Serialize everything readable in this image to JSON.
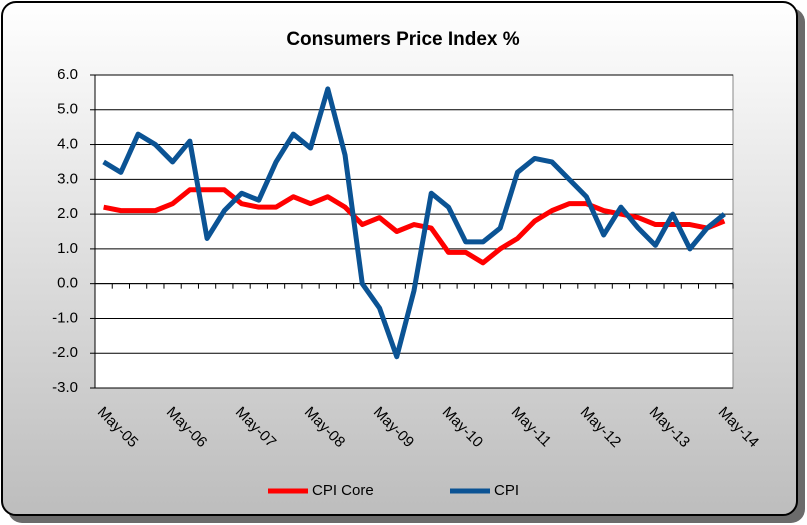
{
  "chart_data": {
    "type": "line",
    "title": "Consumers Price Index %",
    "categories": [
      "May-05",
      null,
      null,
      null,
      "May-06",
      null,
      null,
      null,
      "May-07",
      null,
      null,
      null,
      "May-08",
      null,
      null,
      null,
      "May-09",
      null,
      null,
      null,
      "May-10",
      null,
      null,
      null,
      "May-11",
      null,
      null,
      null,
      "May-12",
      null,
      null,
      null,
      "May-13",
      null,
      null,
      null,
      "May-14"
    ],
    "series": [
      {
        "name": "CPI Core",
        "color": "#ff0000",
        "values": [
          2.2,
          2.1,
          2.1,
          2.1,
          2.3,
          2.7,
          2.7,
          2.7,
          2.3,
          2.2,
          2.2,
          2.5,
          2.3,
          2.5,
          2.2,
          1.7,
          1.9,
          1.5,
          1.7,
          1.6,
          0.9,
          0.9,
          0.6,
          1.0,
          1.3,
          1.8,
          2.1,
          2.3,
          2.3,
          2.1,
          2.0,
          1.9,
          1.7,
          1.7,
          1.7,
          1.6,
          1.8
        ]
      },
      {
        "name": "CPI",
        "color": "#0b5394",
        "values": [
          3.5,
          3.2,
          4.3,
          4.0,
          3.5,
          4.1,
          1.3,
          2.1,
          2.6,
          2.4,
          3.5,
          4.3,
          3.9,
          5.6,
          3.7,
          0.0,
          -0.7,
          -2.1,
          -0.2,
          2.6,
          2.2,
          1.2,
          1.2,
          1.6,
          3.2,
          3.6,
          3.5,
          3.0,
          2.5,
          1.4,
          2.2,
          1.6,
          1.1,
          2.0,
          1.0,
          1.6,
          2.0
        ]
      }
    ],
    "ylim": [
      -3,
      6
    ],
    "yticks": [
      {
        "value": -3,
        "label": "-3.0"
      },
      {
        "value": -2,
        "label": "-2.0"
      },
      {
        "value": -1,
        "label": "-1.0"
      },
      {
        "value": 0,
        "label": "0.0"
      },
      {
        "value": 1,
        "label": "1.0"
      },
      {
        "value": 2,
        "label": "2.0"
      },
      {
        "value": 3,
        "label": "3.0"
      },
      {
        "value": 4,
        "label": "4.0"
      },
      {
        "value": 5,
        "label": "5.0"
      },
      {
        "value": 6,
        "label": "6.0"
      }
    ],
    "grid": true
  }
}
